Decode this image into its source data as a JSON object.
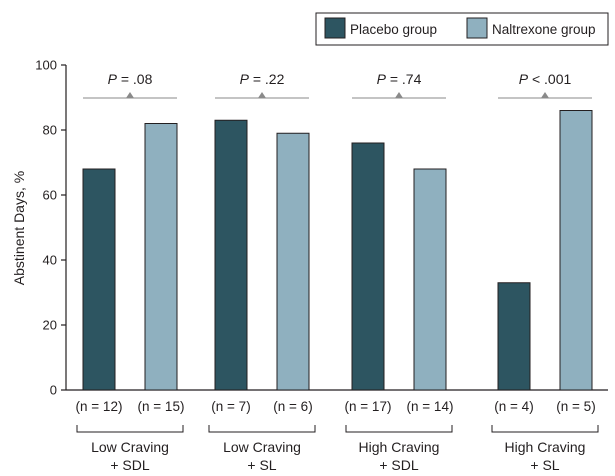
{
  "chart_data": {
    "type": "bar",
    "title": "",
    "xlabel": "",
    "ylabel": "Abstinent Days, %",
    "ylim": [
      0,
      100
    ],
    "yticks": [
      0,
      20,
      40,
      60,
      80,
      100
    ],
    "grid": false,
    "legend_position": "top-right",
    "categories": [
      {
        "line1": "Low Craving",
        "line2": "+ SDL"
      },
      {
        "line1": "Low Craving",
        "line2": "+ SL"
      },
      {
        "line1": "High Craving",
        "line2": "+ SDL"
      },
      {
        "line1": "High Craving",
        "line2": "+ SL"
      }
    ],
    "series": [
      {
        "name": "Placebo group",
        "color": "#2d5561",
        "values": [
          68,
          83,
          76,
          33
        ],
        "n_labels": [
          "(n = 12)",
          "(n = 7)",
          "(n = 17)",
          "(n = 4)"
        ]
      },
      {
        "name": "Naltrexone group",
        "color": "#8fb0bf",
        "values": [
          82,
          79,
          68,
          86
        ],
        "n_labels": [
          "(n = 15)",
          "(n = 6)",
          "(n = 14)",
          "(n = 5)"
        ]
      }
    ],
    "p_values": [
      {
        "italic": "P",
        "rest": " = .08"
      },
      {
        "italic": "P",
        "rest": " = .22"
      },
      {
        "italic": "P",
        "rest": " = .74"
      },
      {
        "italic": "P",
        "rest": " < .001"
      }
    ]
  }
}
